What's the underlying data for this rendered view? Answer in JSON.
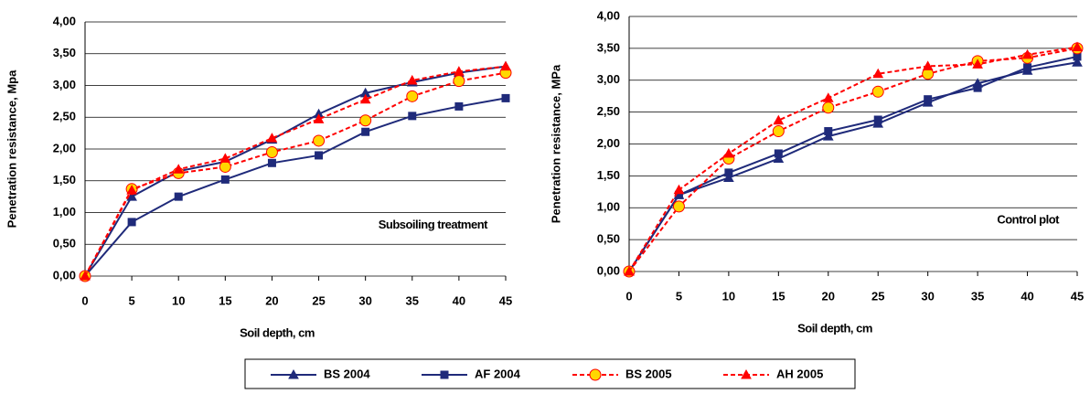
{
  "chart_data": [
    {
      "type": "line",
      "x_label": "Soil depth, cm",
      "y_label": "Penetration resistance, Mpa",
      "annotation": "Subsoiling treatment",
      "x": [
        0,
        5,
        10,
        15,
        20,
        25,
        30,
        35,
        40,
        45
      ],
      "xlim": [
        0,
        45
      ],
      "xticks": [
        0,
        5,
        10,
        15,
        20,
        25,
        30,
        35,
        40,
        45
      ],
      "ylim": [
        0,
        4
      ],
      "yticks": [
        {
          "value": 0,
          "label": "0,00"
        },
        {
          "value": 0.5,
          "label": "0,50"
        },
        {
          "value": 1,
          "label": "1,00"
        },
        {
          "value": 1.5,
          "label": "1,50"
        },
        {
          "value": 2,
          "label": "2,00"
        },
        {
          "value": 2.5,
          "label": "2,50"
        },
        {
          "value": 3,
          "label": "3,00"
        },
        {
          "value": 3.5,
          "label": "3,50"
        },
        {
          "value": 4,
          "label": "4,00"
        }
      ],
      "grid": true,
      "series": [
        {
          "name": "BS 2004",
          "color": "#1f2a7a",
          "marker": "triangle",
          "dashed": false,
          "values": [
            0,
            1.25,
            1.65,
            1.8,
            2.15,
            2.55,
            2.88,
            3.05,
            3.2,
            3.3
          ]
        },
        {
          "name": "AF 2004",
          "color": "#1f2a7a",
          "marker": "square",
          "dashed": false,
          "values": [
            0,
            0.85,
            1.25,
            1.52,
            1.78,
            1.9,
            2.27,
            2.52,
            2.67,
            2.8
          ]
        },
        {
          "name": "BS 2005",
          "color": "#ff0000",
          "marker": "circle",
          "dashed": true,
          "values": [
            0,
            1.37,
            1.62,
            1.72,
            1.95,
            2.13,
            2.45,
            2.83,
            3.07,
            3.2
          ]
        },
        {
          "name": "AH 2005",
          "color": "#ff0000",
          "marker": "triangle",
          "dashed": true,
          "values": [
            0,
            1.35,
            1.68,
            1.85,
            2.17,
            2.47,
            2.78,
            3.08,
            3.22,
            3.3
          ]
        }
      ]
    },
    {
      "type": "line",
      "x_label": "Soil depth, cm",
      "y_label": "Penetration  resistance,  MPa",
      "annotation": "Control plot",
      "x": [
        0,
        5,
        10,
        15,
        20,
        25,
        30,
        35,
        40,
        45
      ],
      "xlim": [
        0,
        45
      ],
      "xticks": [
        0,
        5,
        10,
        15,
        20,
        25,
        30,
        35,
        40,
        45
      ],
      "ylim": [
        0,
        4
      ],
      "yticks": [
        {
          "value": 0,
          "label": "0,00"
        },
        {
          "value": 0.5,
          "label": "0,50"
        },
        {
          "value": 1,
          "label": "1,00"
        },
        {
          "value": 1.5,
          "label": "1,50"
        },
        {
          "value": 2,
          "label": "2,00"
        },
        {
          "value": 2.5,
          "label": "2,50"
        },
        {
          "value": 3,
          "label": "3,00"
        },
        {
          "value": 3.5,
          "label": "3,50"
        },
        {
          "value": 4,
          "label": "4,00"
        }
      ],
      "grid": true,
      "series": [
        {
          "color": "#1f2a7a",
          "marker": "triangle",
          "dashed": false,
          "values": [
            0,
            1.2,
            1.47,
            1.77,
            2.12,
            2.32,
            2.65,
            2.95,
            3.15,
            3.28
          ]
        },
        {
          "color": "#1f2a7a",
          "marker": "square",
          "dashed": false,
          "values": [
            0,
            1.2,
            1.55,
            1.85,
            2.2,
            2.38,
            2.7,
            2.88,
            3.2,
            3.37
          ]
        },
        {
          "color": "#ff0000",
          "marker": "circle",
          "dashed": true,
          "values": [
            0,
            1.02,
            1.77,
            2.2,
            2.57,
            2.82,
            3.1,
            3.3,
            3.35,
            3.5
          ]
        },
        {
          "color": "#ff0000",
          "marker": "triangle",
          "dashed": true,
          "values": [
            0,
            1.28,
            1.85,
            2.37,
            2.72,
            3.1,
            3.22,
            3.25,
            3.4,
            3.52
          ]
        }
      ]
    }
  ]
}
